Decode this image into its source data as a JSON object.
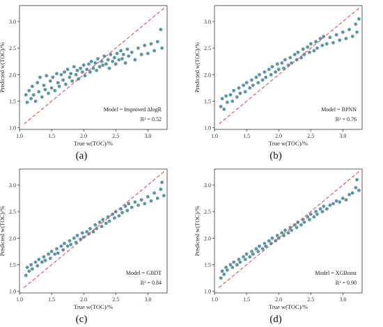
{
  "colors": {
    "point": "#5d95a5",
    "point_edge": "#ffffff",
    "reference_line": "#d9404a",
    "axis": "#333333"
  },
  "chart_data": [
    {
      "type": "scatter",
      "panel_label": "(a)",
      "xlabel": "True w(TOC)/%",
      "ylabel": "Predicted w(TOC)/%",
      "xlim": [
        1.0,
        3.3
      ],
      "ylim": [
        0.97,
        3.3
      ],
      "xticks": [
        "1.0",
        "1.5",
        "2.0",
        "2.5",
        "3.0"
      ],
      "yticks": [
        "1.0",
        "1.5",
        "2.0",
        "2.5",
        "3.0"
      ],
      "xtick_values": [
        1.0,
        1.5,
        2.0,
        2.5,
        3.0
      ],
      "ytick_values": [
        1.0,
        1.5,
        2.0,
        2.5,
        3.0
      ],
      "model_label": "Model = Improved ΔlogR",
      "r2_label": "R² = 0.52",
      "reference_line": [
        [
          1.07,
          1.07
        ],
        [
          3.25,
          3.25
        ]
      ],
      "points": [
        [
          1.1,
          1.62
        ],
        [
          1.12,
          1.48
        ],
        [
          1.15,
          1.7
        ],
        [
          1.18,
          1.55
        ],
        [
          1.2,
          1.78
        ],
        [
          1.22,
          1.62
        ],
        [
          1.25,
          1.5
        ],
        [
          1.28,
          1.85
        ],
        [
          1.3,
          1.68
        ],
        [
          1.32,
          1.95
        ],
        [
          1.35,
          1.58
        ],
        [
          1.38,
          1.8
        ],
        [
          1.4,
          1.72
        ],
        [
          1.42,
          1.98
        ],
        [
          1.45,
          1.65
        ],
        [
          1.48,
          1.88
        ],
        [
          1.5,
          1.75
        ],
        [
          1.52,
          1.95
        ],
        [
          1.55,
          1.7
        ],
        [
          1.58,
          2.02
        ],
        [
          1.6,
          1.85
        ],
        [
          1.62,
          1.78
        ],
        [
          1.65,
          2.0
        ],
        [
          1.68,
          1.9
        ],
        [
          1.7,
          2.05
        ],
        [
          1.72,
          1.82
        ],
        [
          1.75,
          2.1
        ],
        [
          1.78,
          1.95
        ],
        [
          1.8,
          2.02
        ],
        [
          1.82,
          1.88
        ],
        [
          1.85,
          2.15
        ],
        [
          1.88,
          2.0
        ],
        [
          1.9,
          2.08
        ],
        [
          1.92,
          1.92
        ],
        [
          1.95,
          2.12
        ],
        [
          1.98,
          2.05
        ],
        [
          2.0,
          2.18
        ],
        [
          2.02,
          1.98
        ],
        [
          2.05,
          2.1
        ],
        [
          2.08,
          2.2
        ],
        [
          2.1,
          2.05
        ],
        [
          2.12,
          2.25
        ],
        [
          2.15,
          2.12
        ],
        [
          2.18,
          2.22
        ],
        [
          2.2,
          2.08
        ],
        [
          2.22,
          2.3
        ],
        [
          2.25,
          2.15
        ],
        [
          2.28,
          2.25
        ],
        [
          2.3,
          2.18
        ],
        [
          2.32,
          2.35
        ],
        [
          2.35,
          2.2
        ],
        [
          2.38,
          2.28
        ],
        [
          2.4,
          2.12
        ],
        [
          2.42,
          2.38
        ],
        [
          2.45,
          2.25
        ],
        [
          2.48,
          2.32
        ],
        [
          2.5,
          2.2
        ],
        [
          2.52,
          2.4
        ],
        [
          2.55,
          2.28
        ],
        [
          2.58,
          2.45
        ],
        [
          2.6,
          2.3
        ],
        [
          2.62,
          2.38
        ],
        [
          2.65,
          2.22
        ],
        [
          2.68,
          2.48
        ],
        [
          2.7,
          2.35
        ],
        [
          2.75,
          2.42
        ],
        [
          2.8,
          2.28
        ],
        [
          2.85,
          2.5
        ],
        [
          2.9,
          2.38
        ],
        [
          2.95,
          2.55
        ],
        [
          3.0,
          2.4
        ],
        [
          3.05,
          2.58
        ],
        [
          3.1,
          2.45
        ],
        [
          3.15,
          2.62
        ],
        [
          3.2,
          2.85
        ],
        [
          3.22,
          2.5
        ]
      ]
    },
    {
      "type": "scatter",
      "panel_label": "(b)",
      "xlabel": "True w(TOC)/%",
      "ylabel": "Predicted w(TOC)/%",
      "xlim": [
        1.0,
        3.3
      ],
      "ylim": [
        0.97,
        3.3
      ],
      "xticks": [
        "1.0",
        "1.5",
        "2.0",
        "2.5",
        "3.0"
      ],
      "yticks": [
        "1.0",
        "1.5",
        "2.0",
        "2.5",
        "3.0"
      ],
      "xtick_values": [
        1.0,
        1.5,
        2.0,
        2.5,
        3.0
      ],
      "ytick_values": [
        1.0,
        1.5,
        2.0,
        2.5,
        3.0
      ],
      "model_label": "Model = BPNN",
      "r2_label": "R² = 0.76",
      "reference_line": [
        [
          1.07,
          1.07
        ],
        [
          3.25,
          3.25
        ]
      ],
      "points": [
        [
          1.1,
          1.4
        ],
        [
          1.12,
          1.55
        ],
        [
          1.15,
          1.35
        ],
        [
          1.18,
          1.6
        ],
        [
          1.2,
          1.48
        ],
        [
          1.25,
          1.62
        ],
        [
          1.28,
          1.5
        ],
        [
          1.3,
          1.7
        ],
        [
          1.35,
          1.58
        ],
        [
          1.38,
          1.75
        ],
        [
          1.4,
          1.65
        ],
        [
          1.45,
          1.8
        ],
        [
          1.48,
          1.68
        ],
        [
          1.5,
          1.85
        ],
        [
          1.55,
          1.75
        ],
        [
          1.58,
          1.9
        ],
        [
          1.6,
          1.8
        ],
        [
          1.65,
          1.95
        ],
        [
          1.68,
          1.85
        ],
        [
          1.7,
          2.0
        ],
        [
          1.75,
          1.9
        ],
        [
          1.78,
          2.05
        ],
        [
          1.8,
          1.95
        ],
        [
          1.85,
          2.1
        ],
        [
          1.88,
          2.0
        ],
        [
          1.9,
          2.15
        ],
        [
          1.95,
          2.05
        ],
        [
          1.98,
          2.2
        ],
        [
          2.0,
          2.1
        ],
        [
          2.05,
          2.22
        ],
        [
          2.08,
          2.12
        ],
        [
          2.1,
          2.28
        ],
        [
          2.15,
          2.18
        ],
        [
          2.18,
          2.32
        ],
        [
          2.2,
          2.22
        ],
        [
          2.25,
          2.38
        ],
        [
          2.28,
          2.28
        ],
        [
          2.3,
          2.42
        ],
        [
          2.35,
          2.32
        ],
        [
          2.38,
          2.48
        ],
        [
          2.4,
          2.38
        ],
        [
          2.45,
          2.52
        ],
        [
          2.48,
          2.42
        ],
        [
          2.5,
          2.58
        ],
        [
          2.55,
          2.45
        ],
        [
          2.58,
          2.62
        ],
        [
          2.6,
          2.5
        ],
        [
          2.65,
          2.68
        ],
        [
          2.68,
          2.55
        ],
        [
          2.7,
          2.72
        ],
        [
          2.75,
          2.58
        ],
        [
          2.8,
          2.7
        ],
        [
          2.85,
          2.6
        ],
        [
          2.9,
          2.75
        ],
        [
          2.95,
          2.65
        ],
        [
          3.0,
          2.8
        ],
        [
          3.05,
          2.68
        ],
        [
          3.1,
          2.85
        ],
        [
          3.15,
          2.72
        ],
        [
          3.2,
          2.95
        ],
        [
          3.22,
          2.8
        ],
        [
          3.25,
          3.05
        ]
      ]
    },
    {
      "type": "scatter",
      "panel_label": "(c)",
      "xlabel": "True w(TOC)/%",
      "ylabel": "Predicted w(TOC)/%",
      "xlim": [
        1.0,
        3.3
      ],
      "ylim": [
        0.97,
        3.3
      ],
      "xticks": [
        "1.0",
        "1.5",
        "2.0",
        "2.5",
        "3.0"
      ],
      "yticks": [
        "1.0",
        "1.5",
        "2.0",
        "2.5",
        "3.0"
      ],
      "xtick_values": [
        1.0,
        1.5,
        2.0,
        2.5,
        3.0
      ],
      "ytick_values": [
        1.0,
        1.5,
        2.0,
        2.5,
        3.0
      ],
      "model_label": "Model = GBDT",
      "r2_label": "R² = 0.84",
      "reference_line": [
        [
          1.07,
          1.07
        ],
        [
          3.25,
          3.25
        ]
      ],
      "points": [
        [
          1.1,
          1.3
        ],
        [
          1.12,
          1.45
        ],
        [
          1.15,
          1.38
        ],
        [
          1.18,
          1.5
        ],
        [
          1.2,
          1.42
        ],
        [
          1.25,
          1.55
        ],
        [
          1.28,
          1.48
        ],
        [
          1.3,
          1.6
        ],
        [
          1.35,
          1.55
        ],
        [
          1.38,
          1.65
        ],
        [
          1.4,
          1.58
        ],
        [
          1.45,
          1.7
        ],
        [
          1.48,
          1.62
        ],
        [
          1.5,
          1.75
        ],
        [
          1.55,
          1.7
        ],
        [
          1.58,
          1.8
        ],
        [
          1.6,
          1.72
        ],
        [
          1.65,
          1.85
        ],
        [
          1.68,
          1.78
        ],
        [
          1.7,
          1.9
        ],
        [
          1.75,
          1.85
        ],
        [
          1.78,
          1.95
        ],
        [
          1.8,
          1.88
        ],
        [
          1.85,
          2.0
        ],
        [
          1.88,
          1.92
        ],
        [
          1.9,
          2.05
        ],
        [
          1.95,
          1.98
        ],
        [
          1.98,
          2.1
        ],
        [
          2.0,
          2.02
        ],
        [
          2.05,
          2.12
        ],
        [
          2.08,
          2.08
        ],
        [
          2.1,
          2.18
        ],
        [
          2.15,
          2.12
        ],
        [
          2.18,
          2.25
        ],
        [
          2.2,
          2.18
        ],
        [
          2.25,
          2.3
        ],
        [
          2.28,
          2.22
        ],
        [
          2.3,
          2.35
        ],
        [
          2.35,
          2.28
        ],
        [
          2.38,
          2.4
        ],
        [
          2.4,
          2.32
        ],
        [
          2.45,
          2.45
        ],
        [
          2.48,
          2.38
        ],
        [
          2.5,
          2.5
        ],
        [
          2.55,
          2.42
        ],
        [
          2.58,
          2.55
        ],
        [
          2.6,
          2.48
        ],
        [
          2.65,
          2.6
        ],
        [
          2.68,
          2.52
        ],
        [
          2.7,
          2.65
        ],
        [
          2.75,
          2.58
        ],
        [
          2.8,
          2.68
        ],
        [
          2.85,
          2.62
        ],
        [
          2.9,
          2.72
        ],
        [
          2.95,
          2.65
        ],
        [
          3.0,
          2.78
        ],
        [
          3.05,
          2.7
        ],
        [
          3.1,
          2.85
        ],
        [
          3.15,
          2.75
        ],
        [
          3.2,
          2.92
        ],
        [
          3.22,
          3.05
        ],
        [
          3.25,
          2.8
        ]
      ]
    },
    {
      "type": "scatter",
      "panel_label": "(d)",
      "xlabel": "True w(TOC)/%",
      "ylabel": "Predicted w(TOC)/%",
      "xlim": [
        1.0,
        3.3
      ],
      "ylim": [
        0.97,
        3.3
      ],
      "xticks": [
        "1.0",
        "1.5",
        "2.0",
        "2.5",
        "3.0"
      ],
      "yticks": [
        "1.0",
        "1.5",
        "2.0",
        "2.5",
        "3.0"
      ],
      "xtick_values": [
        1.0,
        1.5,
        2.0,
        2.5,
        3.0
      ],
      "ytick_values": [
        1.0,
        1.5,
        2.0,
        2.5,
        3.0
      ],
      "model_label": "Model = XGBoost",
      "r2_label": "R² = 0.90",
      "reference_line": [
        [
          1.07,
          1.07
        ],
        [
          3.25,
          3.25
        ]
      ],
      "points": [
        [
          1.1,
          1.25
        ],
        [
          1.12,
          1.38
        ],
        [
          1.15,
          1.32
        ],
        [
          1.18,
          1.45
        ],
        [
          1.2,
          1.4
        ],
        [
          1.25,
          1.5
        ],
        [
          1.28,
          1.45
        ],
        [
          1.3,
          1.55
        ],
        [
          1.35,
          1.5
        ],
        [
          1.38,
          1.6
        ],
        [
          1.4,
          1.55
        ],
        [
          1.45,
          1.65
        ],
        [
          1.48,
          1.6
        ],
        [
          1.5,
          1.7
        ],
        [
          1.55,
          1.65
        ],
        [
          1.58,
          1.75
        ],
        [
          1.6,
          1.7
        ],
        [
          1.65,
          1.8
        ],
        [
          1.68,
          1.75
        ],
        [
          1.7,
          1.85
        ],
        [
          1.75,
          1.8
        ],
        [
          1.78,
          1.9
        ],
        [
          1.8,
          1.85
        ],
        [
          1.85,
          1.95
        ],
        [
          1.88,
          1.9
        ],
        [
          1.9,
          2.0
        ],
        [
          1.95,
          1.95
        ],
        [
          1.98,
          2.05
        ],
        [
          2.0,
          2.0
        ],
        [
          2.05,
          2.1
        ],
        [
          2.08,
          2.05
        ],
        [
          2.1,
          2.15
        ],
        [
          2.15,
          2.1
        ],
        [
          2.18,
          2.2
        ],
        [
          2.2,
          2.15
        ],
        [
          2.25,
          2.25
        ],
        [
          2.28,
          2.2
        ],
        [
          2.3,
          2.3
        ],
        [
          2.35,
          2.25
        ],
        [
          2.38,
          2.35
        ],
        [
          2.4,
          2.3
        ],
        [
          2.45,
          2.4
        ],
        [
          2.48,
          2.35
        ],
        [
          2.5,
          2.45
        ],
        [
          2.55,
          2.4
        ],
        [
          2.58,
          2.5
        ],
        [
          2.6,
          2.45
        ],
        [
          2.65,
          2.55
        ],
        [
          2.68,
          2.5
        ],
        [
          2.7,
          2.6
        ],
        [
          2.75,
          2.55
        ],
        [
          2.8,
          2.62
        ],
        [
          2.85,
          2.65
        ],
        [
          2.9,
          2.7
        ],
        [
          2.95,
          2.68
        ],
        [
          3.0,
          2.75
        ],
        [
          3.05,
          2.72
        ],
        [
          3.1,
          2.82
        ],
        [
          3.15,
          2.85
        ],
        [
          3.2,
          2.95
        ],
        [
          3.22,
          3.1
        ],
        [
          3.25,
          2.9
        ]
      ]
    }
  ]
}
